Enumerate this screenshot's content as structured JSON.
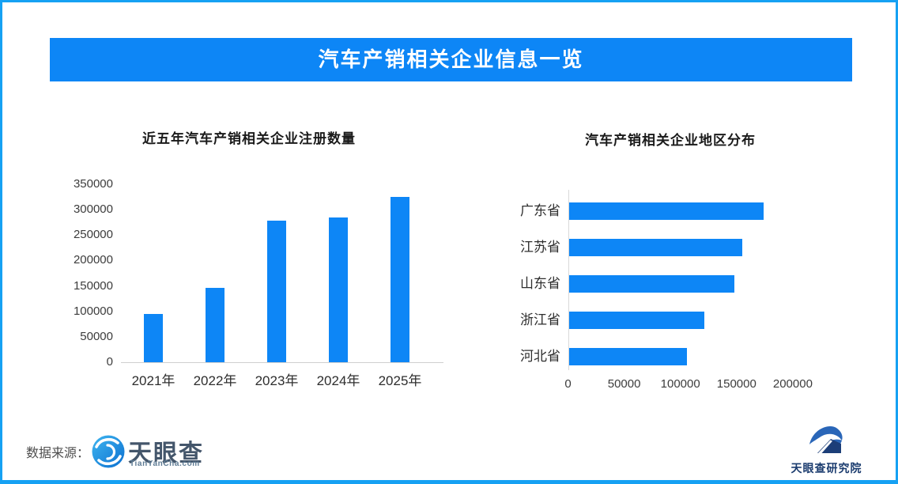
{
  "banner": {
    "title": "汽车产销相关企业信息一览"
  },
  "footer": {
    "source_label": "数据来源：",
    "tianyancha": {
      "name": "天眼查",
      "domain": "TianYanCha.com"
    },
    "institute": {
      "name": "天眼查研究院"
    }
  },
  "colors": {
    "bar": "#0D86F6",
    "banner_bg": "#0D86F6",
    "border": "#16A1F3",
    "axis_line": "#CFCFCF",
    "tick_text": "#3C3C3C",
    "label_text": "#2E2E2E",
    "title_text": "#1A1A1A"
  },
  "chart_data": [
    {
      "type": "bar",
      "title": "近五年汽车产销相关企业注册数量",
      "categories": [
        "2021年",
        "2022年",
        "2023年",
        "2024年",
        "2025年"
      ],
      "values": [
        95000,
        146000,
        278000,
        284000,
        325000
      ],
      "ylabel": "",
      "xlabel": "",
      "ylim": [
        0,
        350000
      ],
      "yticks": [
        0,
        50000,
        100000,
        150000,
        200000,
        250000,
        300000,
        350000
      ],
      "grid": false,
      "legend": false,
      "bar_color": "#0D86F6"
    },
    {
      "type": "bar-horizontal",
      "title": "汽车产销相关企业地区分布",
      "categories": [
        "广东省",
        "江苏省",
        "山东省",
        "浙江省",
        "河北省"
      ],
      "values": [
        173000,
        154000,
        147000,
        120000,
        105000
      ],
      "ylabel": "",
      "xlabel": "",
      "xlim": [
        0,
        200000
      ],
      "xticks": [
        0,
        50000,
        100000,
        150000,
        200000
      ],
      "grid": false,
      "legend": false,
      "bar_color": "#0D86F6"
    }
  ]
}
